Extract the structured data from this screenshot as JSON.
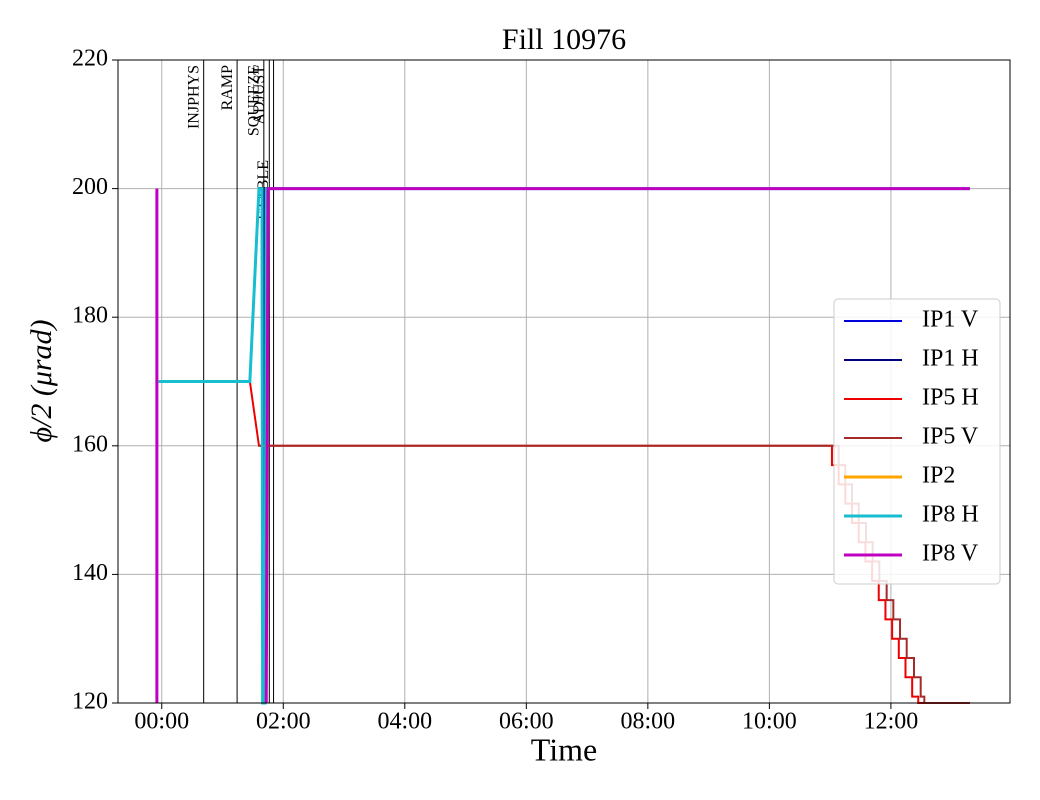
{
  "chart_data": {
    "type": "line",
    "title": "Fill 10976",
    "xlabel": "Time",
    "ylabel": "ϕ/2 (μrad)",
    "xlim": [
      -0.72,
      13.96
    ],
    "ylim": [
      120,
      220
    ],
    "xticks": [
      {
        "value": 0,
        "label": "00:00"
      },
      {
        "value": 2,
        "label": "02:00"
      },
      {
        "value": 4,
        "label": "04:00"
      },
      {
        "value": 6,
        "label": "06:00"
      },
      {
        "value": 8,
        "label": "08:00"
      },
      {
        "value": 10,
        "label": "10:00"
      },
      {
        "value": 12,
        "label": "12:00"
      }
    ],
    "yticks": [
      120,
      140,
      160,
      180,
      200,
      220
    ],
    "grid": true,
    "legend": "center right",
    "phases": [
      {
        "label": "INJPHYS",
        "x": 0.69
      },
      {
        "label": "RAMP",
        "x": 1.24
      },
      {
        "label": "SQUEEZE",
        "x": 1.68
      },
      {
        "label": "ADJUST",
        "x": 1.77
      },
      {
        "label": "STABLE",
        "x": 1.84
      }
    ],
    "series": [
      {
        "name": "IP1 V",
        "color": "#0000dd",
        "x": [
          1.7,
          1.7
        ],
        "values": [
          120,
          200
        ]
      },
      {
        "name": "IP1 H",
        "color": "#000080",
        "x": [
          1.69,
          1.69
        ],
        "values": [
          120,
          200
        ]
      },
      {
        "name": "IP5 H",
        "color": "#ee0000",
        "x": [
          -0.05,
          1.45,
          1.6,
          11.03,
          11.03,
          11.14,
          11.14,
          11.25,
          11.25,
          11.36,
          11.36,
          11.47,
          11.47,
          11.58,
          11.58,
          11.69,
          11.69,
          11.8,
          11.8,
          11.91,
          11.91,
          12.02,
          12.02,
          12.13,
          12.13,
          12.24,
          12.24,
          12.35,
          12.35,
          12.45,
          12.45,
          13.3
        ],
        "values": [
          170,
          170,
          160,
          160,
          157,
          157,
          154,
          154,
          151,
          151,
          148,
          148,
          145,
          145,
          142,
          142,
          139,
          139,
          136,
          136,
          133,
          133,
          130,
          130,
          127,
          127,
          124,
          124,
          121,
          121,
          120,
          120
        ]
      },
      {
        "name": "IP5 V",
        "color": "#a52a2a",
        "x": [
          1.6,
          11.14,
          11.14,
          11.25,
          11.25,
          11.36,
          11.36,
          11.47,
          11.47,
          11.59,
          11.59,
          11.7,
          11.7,
          11.81,
          11.81,
          11.93,
          11.93,
          12.04,
          12.04,
          12.15,
          12.15,
          12.26,
          12.26,
          12.38,
          12.38,
          12.49,
          12.49,
          12.55,
          12.55,
          13.3
        ],
        "values": [
          160,
          160,
          157,
          157,
          154,
          154,
          151,
          151,
          148,
          148,
          145,
          145,
          142,
          142,
          139,
          139,
          136,
          136,
          133,
          133,
          130,
          130,
          127,
          127,
          124,
          124,
          121,
          121,
          120,
          120
        ]
      },
      {
        "name": "IP2",
        "color": "#ffa500",
        "x": [
          1.74,
          13.3
        ],
        "values": [
          200,
          200
        ]
      },
      {
        "name": "IP8 H",
        "color": "#17becf",
        "x": [
          -0.05,
          1.45,
          1.6,
          1.65,
          1.66,
          1.7,
          1.72,
          13.3
        ],
        "values": [
          170,
          170,
          200,
          200,
          120,
          120,
          200,
          200
        ]
      },
      {
        "name": "IP8 V",
        "color": "#c000c0",
        "x": [
          -0.08,
          -0.08,
          null,
          1.72,
          1.75,
          13.3
        ],
        "values": [
          120,
          200,
          null,
          120,
          200,
          200
        ]
      }
    ]
  }
}
